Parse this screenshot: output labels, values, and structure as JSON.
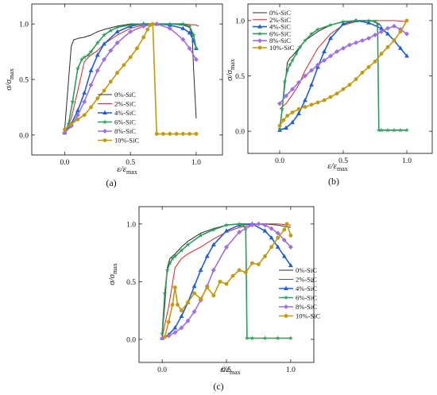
{
  "figure": {
    "panel_labels": [
      "(a)",
      "(b)",
      "(c)"
    ]
  },
  "chart_data": [
    {
      "panel": "(a)",
      "type": "line",
      "xlabel": {
        "main": "ε/ε",
        "sub": "max"
      },
      "ylabel": {
        "main": "σ/σ",
        "sub": "max"
      },
      "xlim": [
        -0.25,
        1.2
      ],
      "ylim": [
        -0.18,
        1.18
      ],
      "xticks": [
        0.0,
        0.5,
        1.0
      ],
      "yticks": [
        0.0,
        0.5,
        1.0
      ],
      "xtick_labels": [
        "0.0",
        "0.5",
        "1.0"
      ],
      "ytick_labels": [
        "0.0",
        "0.5",
        "1.0"
      ],
      "grid": false,
      "legend_position": "center-right",
      "series": [
        {
          "name": "0%-SiC",
          "color": "#2b2b2b",
          "marker": "none",
          "x": [
            0.0,
            0.02,
            0.05,
            0.07,
            0.08,
            0.1,
            0.15,
            0.2,
            0.25,
            0.3,
            0.4,
            0.5,
            0.6,
            0.7,
            0.8,
            0.9,
            0.95,
            0.97,
            0.98,
            1.0
          ],
          "y": [
            0.05,
            0.35,
            0.8,
            0.86,
            0.86,
            0.87,
            0.88,
            0.9,
            0.93,
            0.95,
            0.98,
            1.0,
            1.0,
            1.0,
            1.0,
            0.99,
            0.97,
            0.9,
            0.6,
            0.15
          ]
        },
        {
          "name": "2%-SiC",
          "color": "#d62728",
          "marker": "none",
          "x": [
            0.0,
            0.05,
            0.1,
            0.15,
            0.18,
            0.2,
            0.25,
            0.3,
            0.4,
            0.5,
            0.6,
            0.7,
            0.8,
            0.9,
            1.0,
            1.02
          ],
          "y": [
            0.02,
            0.15,
            0.4,
            0.66,
            0.7,
            0.72,
            0.76,
            0.82,
            0.9,
            0.96,
            0.99,
            1.0,
            1.0,
            1.0,
            0.99,
            0.98
          ]
        },
        {
          "name": "4%-SiC",
          "color": "#1f5fd0",
          "marker": "triangle",
          "x": [
            0.0,
            0.05,
            0.1,
            0.15,
            0.2,
            0.25,
            0.3,
            0.4,
            0.5,
            0.6,
            0.7,
            0.8,
            0.9,
            0.95,
            0.98,
            1.0
          ],
          "y": [
            0.02,
            0.1,
            0.22,
            0.38,
            0.58,
            0.72,
            0.82,
            0.93,
            0.98,
            1.0,
            1.0,
            0.99,
            0.96,
            0.92,
            0.85,
            0.78
          ]
        },
        {
          "name": "6%-SiC",
          "color": "#2e9b5a",
          "marker": "star",
          "x": [
            0.0,
            0.03,
            0.06,
            0.1,
            0.13,
            0.15,
            0.18,
            0.2,
            0.25,
            0.3,
            0.35,
            0.4,
            0.5,
            0.6,
            0.7,
            0.8,
            0.9,
            0.95,
            0.98,
            1.0
          ],
          "y": [
            0.02,
            0.1,
            0.3,
            0.6,
            0.68,
            0.7,
            0.72,
            0.75,
            0.83,
            0.9,
            0.94,
            0.97,
            0.99,
            1.0,
            1.0,
            1.0,
            1.0,
            0.98,
            0.9,
            0.78
          ]
        },
        {
          "name": "8%-SiC",
          "color": "#a070e0",
          "marker": "diamond",
          "x": [
            0.0,
            0.05,
            0.1,
            0.15,
            0.2,
            0.25,
            0.3,
            0.35,
            0.4,
            0.5,
            0.6,
            0.7,
            0.8,
            0.9,
            0.95,
            1.0
          ],
          "y": [
            0.02,
            0.08,
            0.18,
            0.3,
            0.45,
            0.58,
            0.68,
            0.76,
            0.83,
            0.93,
            0.98,
            1.0,
            0.96,
            0.86,
            0.78,
            0.68
          ]
        },
        {
          "name": "10%-SiC",
          "color": "#c49a0c",
          "marker": "circle",
          "x": [
            0.0,
            0.05,
            0.1,
            0.15,
            0.2,
            0.25,
            0.3,
            0.35,
            0.4,
            0.45,
            0.5,
            0.55,
            0.6,
            0.63,
            0.65,
            0.67,
            0.7,
            0.75,
            0.8,
            0.85,
            0.9,
            0.95,
            1.0
          ],
          "y": [
            0.05,
            0.1,
            0.14,
            0.18,
            0.25,
            0.33,
            0.4,
            0.48,
            0.56,
            0.63,
            0.7,
            0.78,
            0.88,
            0.95,
            0.99,
            1.0,
            0.01,
            0.01,
            0.01,
            0.01,
            0.01,
            0.01,
            0.01
          ]
        }
      ]
    },
    {
      "panel": "(b)",
      "type": "line",
      "xlabel": {
        "main": "ε/ε",
        "sub": "max"
      },
      "ylabel": {
        "main": "σ/σ",
        "sub": "max"
      },
      "xlim": [
        -0.25,
        1.2
      ],
      "ylim": [
        -0.2,
        1.15
      ],
      "xticks": [
        0.0,
        0.5,
        1.0
      ],
      "yticks": [
        0.0,
        0.5,
        1.0
      ],
      "xtick_labels": [
        "0.0",
        "0.5",
        "1.0"
      ],
      "ytick_labels": [
        "0.0",
        "0.5",
        "1.0"
      ],
      "grid": false,
      "legend_position": "top-left",
      "series": [
        {
          "name": "0%-SiC",
          "color": "#2b2b2b",
          "marker": "none",
          "x": [
            0.0,
            0.03,
            0.06,
            0.08,
            0.1,
            0.15,
            0.2,
            0.3,
            0.4,
            0.5,
            0.6,
            0.7,
            0.75,
            0.78,
            0.8
          ],
          "y": [
            0.02,
            0.3,
            0.62,
            0.66,
            0.68,
            0.75,
            0.82,
            0.9,
            0.96,
            0.99,
            1.0,
            1.0,
            0.99,
            0.97,
            0.95
          ]
        },
        {
          "name": "2%-SiC",
          "color": "#d62728",
          "marker": "none",
          "x": [
            0.0,
            0.05,
            0.1,
            0.15,
            0.2,
            0.3,
            0.4,
            0.5,
            0.6,
            0.7,
            0.8,
            0.9,
            1.0
          ],
          "y": [
            0.2,
            0.25,
            0.33,
            0.42,
            0.55,
            0.75,
            0.88,
            0.96,
            0.99,
            1.0,
            1.0,
            1.0,
            0.99
          ]
        },
        {
          "name": "4%-SiC",
          "color": "#1f5fd0",
          "marker": "triangle",
          "x": [
            0.0,
            0.05,
            0.1,
            0.15,
            0.2,
            0.25,
            0.3,
            0.35,
            0.4,
            0.5,
            0.6,
            0.7,
            0.8,
            0.85,
            0.9,
            0.95,
            1.0
          ],
          "y": [
            0.01,
            0.03,
            0.08,
            0.16,
            0.28,
            0.42,
            0.58,
            0.72,
            0.84,
            0.97,
            1.0,
            0.98,
            0.93,
            0.88,
            0.82,
            0.75,
            0.68
          ]
        },
        {
          "name": "6%-SiC",
          "color": "#2e9b5a",
          "marker": "star",
          "x": [
            0.0,
            0.02,
            0.04,
            0.06,
            0.08,
            0.1,
            0.13,
            0.16,
            0.2,
            0.25,
            0.3,
            0.4,
            0.5,
            0.6,
            0.7,
            0.75,
            0.77,
            0.78,
            0.8,
            0.85,
            0.9,
            0.95,
            1.0
          ],
          "y": [
            0.02,
            0.2,
            0.45,
            0.55,
            0.6,
            0.64,
            0.7,
            0.76,
            0.82,
            0.88,
            0.92,
            0.96,
            0.99,
            1.0,
            1.0,
            0.99,
            0.97,
            0.01,
            0.01,
            0.01,
            0.01,
            0.01,
            0.01
          ]
        },
        {
          "name": "8%-SiC",
          "color": "#a070e0",
          "marker": "diamond",
          "x": [
            0.0,
            0.05,
            0.1,
            0.15,
            0.2,
            0.25,
            0.3,
            0.35,
            0.4,
            0.45,
            0.5,
            0.55,
            0.6,
            0.65,
            0.7,
            0.75,
            0.8,
            0.85,
            0.9,
            0.95,
            1.0
          ],
          "y": [
            0.25,
            0.32,
            0.38,
            0.44,
            0.5,
            0.55,
            0.6,
            0.64,
            0.68,
            0.72,
            0.75,
            0.78,
            0.8,
            0.82,
            0.84,
            0.87,
            0.9,
            0.93,
            0.95,
            0.92,
            0.88
          ]
        },
        {
          "name": "10%-SiC",
          "color": "#c49a0c",
          "marker": "circle",
          "x": [
            0.0,
            0.03,
            0.06,
            0.1,
            0.15,
            0.2,
            0.25,
            0.3,
            0.35,
            0.4,
            0.45,
            0.5,
            0.55,
            0.6,
            0.65,
            0.7,
            0.75,
            0.8,
            0.85,
            0.9,
            0.95,
            1.0
          ],
          "y": [
            0.05,
            0.1,
            0.14,
            0.17,
            0.2,
            0.22,
            0.24,
            0.26,
            0.28,
            0.31,
            0.34,
            0.38,
            0.42,
            0.47,
            0.53,
            0.58,
            0.63,
            0.7,
            0.76,
            0.82,
            0.9,
            1.0
          ]
        }
      ]
    },
    {
      "panel": "(c)",
      "type": "line",
      "xlabel": {
        "main": "ε/ε",
        "sub": "max"
      },
      "ylabel": {
        "main": "σ/σ",
        "sub": "max"
      },
      "xlim": [
        -0.18,
        1.18
      ],
      "ylim": [
        -0.2,
        1.15
      ],
      "xticks": [
        0.0,
        0.5,
        1.0
      ],
      "yticks": [
        0.0,
        0.5,
        1.0
      ],
      "xtick_labels": [
        "0.0",
        "0.5",
        "1.0"
      ],
      "ytick_labels": [
        "0.0",
        "0.5",
        "1.0"
      ],
      "grid": false,
      "legend_position": "bottom-right",
      "series": [
        {
          "name": "0%-SiC",
          "color": "#2b2b2b",
          "marker": "none",
          "x": [
            0.0,
            0.02,
            0.04,
            0.06,
            0.08,
            0.1,
            0.15,
            0.2,
            0.3,
            0.4,
            0.5,
            0.6,
            0.7,
            0.8,
            0.9,
            0.95,
            1.0
          ],
          "y": [
            0.02,
            0.3,
            0.62,
            0.7,
            0.72,
            0.74,
            0.8,
            0.85,
            0.92,
            0.96,
            0.99,
            1.0,
            1.0,
            1.0,
            0.99,
            0.98,
            0.97
          ]
        },
        {
          "name": "2%-SiC",
          "color": "#d62728",
          "marker": "none",
          "x": [
            0.0,
            0.05,
            0.1,
            0.15,
            0.2,
            0.3,
            0.4,
            0.5,
            0.6,
            0.7,
            0.8,
            0.9,
            1.0
          ],
          "y": [
            0.02,
            0.28,
            0.62,
            0.7,
            0.74,
            0.8,
            0.87,
            0.93,
            0.97,
            0.99,
            1.0,
            1.0,
            0.99
          ]
        },
        {
          "name": "4%-SiC",
          "color": "#1f5fd0",
          "marker": "triangle",
          "x": [
            0.0,
            0.05,
            0.1,
            0.15,
            0.2,
            0.25,
            0.3,
            0.35,
            0.4,
            0.5,
            0.6,
            0.7,
            0.8,
            0.85,
            0.9,
            0.95,
            1.0
          ],
          "y": [
            0.01,
            0.04,
            0.1,
            0.2,
            0.32,
            0.46,
            0.6,
            0.72,
            0.82,
            0.94,
            0.99,
            1.0,
            0.94,
            0.88,
            0.8,
            0.72,
            0.64
          ]
        },
        {
          "name": "6%-SiC",
          "color": "#2e9b5a",
          "marker": "star",
          "x": [
            0.0,
            0.02,
            0.04,
            0.06,
            0.08,
            0.1,
            0.15,
            0.2,
            0.3,
            0.4,
            0.5,
            0.6,
            0.63,
            0.65,
            0.66,
            0.7,
            0.8,
            0.9,
            1.0
          ],
          "y": [
            0.05,
            0.4,
            0.6,
            0.66,
            0.7,
            0.72,
            0.77,
            0.82,
            0.9,
            0.95,
            0.99,
            1.0,
            0.99,
            0.96,
            0.01,
            0.01,
            0.01,
            0.01,
            0.01
          ]
        },
        {
          "name": "8%-SiC",
          "color": "#a070e0",
          "marker": "diamond",
          "x": [
            0.0,
            0.05,
            0.1,
            0.15,
            0.2,
            0.25,
            0.3,
            0.35,
            0.4,
            0.5,
            0.6,
            0.7,
            0.75,
            0.8,
            0.85,
            0.9,
            0.95,
            1.0
          ],
          "y": [
            0.01,
            0.03,
            0.06,
            0.1,
            0.16,
            0.24,
            0.34,
            0.46,
            0.6,
            0.8,
            0.93,
            0.99,
            1.0,
            0.99,
            0.96,
            0.92,
            0.86,
            0.8
          ]
        },
        {
          "name": "10%-SiC",
          "color": "#c49a0c",
          "marker": "circle",
          "x": [
            0.02,
            0.05,
            0.08,
            0.1,
            0.12,
            0.15,
            0.2,
            0.25,
            0.3,
            0.35,
            0.4,
            0.45,
            0.5,
            0.55,
            0.6,
            0.65,
            0.7,
            0.75,
            0.8,
            0.85,
            0.9,
            0.95,
            0.97,
            1.0
          ],
          "y": [
            0.02,
            0.15,
            0.3,
            0.45,
            0.3,
            0.25,
            0.32,
            0.4,
            0.35,
            0.45,
            0.38,
            0.5,
            0.48,
            0.55,
            0.6,
            0.58,
            0.66,
            0.65,
            0.72,
            0.8,
            0.88,
            0.95,
            1.0,
            0.9
          ]
        }
      ]
    }
  ]
}
